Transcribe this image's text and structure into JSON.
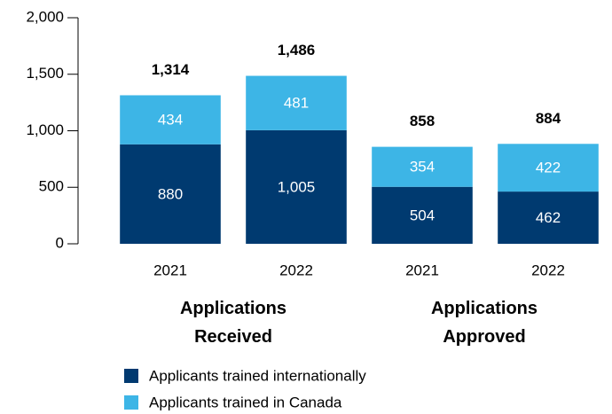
{
  "chart_data": {
    "type": "stacked_bar",
    "categories": [
      "2021",
      "2022",
      "2021",
      "2022"
    ],
    "groups": [
      "Applications Received",
      "Applications Approved"
    ],
    "series": [
      {
        "name": "Applicants trained internationally",
        "color": "#003a70",
        "values": [
          880,
          1005,
          504,
          462
        ],
        "value_labels": [
          "880",
          "1,005",
          "504",
          "462"
        ]
      },
      {
        "name": "Applicants trained in Canada",
        "color": "#3db5e6",
        "values": [
          434,
          481,
          354,
          422
        ]
      }
    ],
    "totals": [
      1314,
      1486,
      858,
      884
    ],
    "total_labels": [
      "1,314",
      "1,486",
      "858",
      "884"
    ],
    "ylim": [
      0,
      2000
    ],
    "yticks": [
      0,
      500,
      {
        "value": 1000,
        "label": "1,000"
      },
      {
        "value": 1500,
        "label": "1,500"
      },
      {
        "value": 2000,
        "label": "2,000"
      }
    ],
    "grid": false
  }
}
